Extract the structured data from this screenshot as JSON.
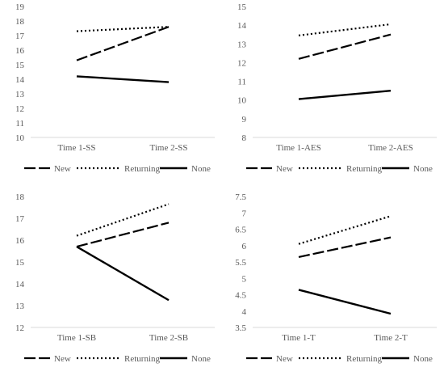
{
  "legend_labels": [
    "New",
    "Returning",
    "None"
  ],
  "chart_data": [
    {
      "type": "line",
      "categories": [
        "Time 1-SS",
        "Time 2-SS"
      ],
      "ylim": [
        10,
        19
      ],
      "ystep": 1,
      "series": [
        {
          "name": "New",
          "values": [
            15.3,
            17.6
          ]
        },
        {
          "name": "Returning",
          "values": [
            17.3,
            17.6
          ]
        },
        {
          "name": "None",
          "values": [
            14.2,
            13.8
          ]
        }
      ],
      "legend_position": "bottom"
    },
    {
      "type": "line",
      "categories": [
        "Time 1-AES",
        "Time 2-AES"
      ],
      "ylim": [
        8,
        15
      ],
      "ystep": 1,
      "series": [
        {
          "name": "New",
          "values": [
            12.2,
            13.5
          ]
        },
        {
          "name": "Returning",
          "values": [
            13.45,
            14.05
          ]
        },
        {
          "name": "None",
          "values": [
            10.05,
            10.5
          ]
        }
      ],
      "legend_position": "bottom"
    },
    {
      "type": "line",
      "categories": [
        "Time 1-SB",
        "Time 2-SB"
      ],
      "ylim": [
        12,
        18
      ],
      "ystep": 1,
      "series": [
        {
          "name": "New",
          "values": [
            15.7,
            16.8
          ]
        },
        {
          "name": "Returning",
          "values": [
            16.2,
            17.65
          ]
        },
        {
          "name": "None",
          "values": [
            15.7,
            13.25
          ]
        }
      ],
      "legend_position": "bottom"
    },
    {
      "type": "line",
      "categories": [
        "Time 1-T",
        "Time 2-T"
      ],
      "ylim": [
        3.5,
        7.5
      ],
      "ystep": 0.5,
      "series": [
        {
          "name": "New",
          "values": [
            5.65,
            6.25
          ]
        },
        {
          "name": "Returning",
          "values": [
            6.05,
            6.9
          ]
        },
        {
          "name": "None",
          "values": [
            4.65,
            3.92
          ]
        }
      ],
      "legend_position": "bottom"
    }
  ]
}
